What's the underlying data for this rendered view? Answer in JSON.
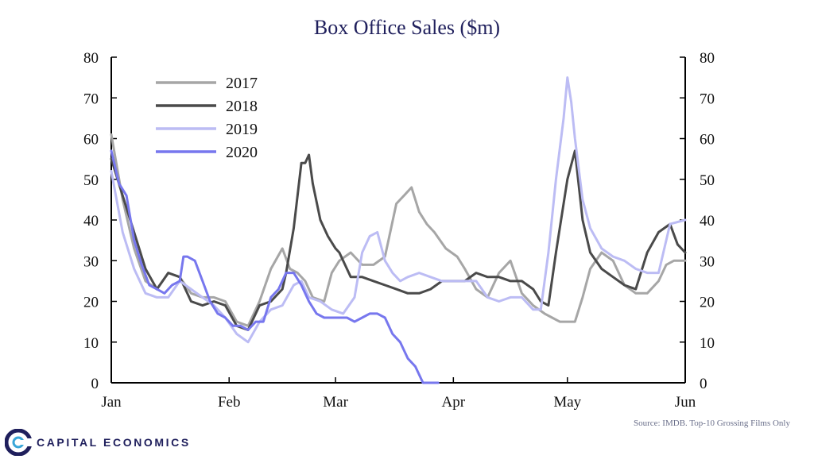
{
  "chart_data": {
    "type": "line",
    "title": "Box Office Sales ($m)",
    "xlabel": "",
    "ylabel": "",
    "ylim": [
      0,
      80
    ],
    "yticks": [
      0,
      10,
      20,
      30,
      40,
      50,
      60,
      70,
      80
    ],
    "xlim": [
      0,
      150
    ],
    "xticks": [
      {
        "label": "Jan",
        "day": 0
      },
      {
        "label": "Feb",
        "day": 31
      },
      {
        "label": "Mar",
        "day": 59
      },
      {
        "label": "Apr",
        "day": 90
      },
      {
        "label": "May",
        "day": 120
      },
      {
        "label": "Jun",
        "day": 151
      }
    ],
    "legend_position": "top-left",
    "grid": false,
    "series": [
      {
        "name": "2017",
        "color": "#a6a6a6",
        "x": [
          0,
          3,
          6,
          9,
          12,
          15,
          18,
          21,
          24,
          27,
          30,
          33,
          36,
          39,
          42,
          45,
          47,
          49,
          51,
          53,
          56,
          58,
          60,
          63,
          66,
          69,
          72,
          75,
          77,
          79,
          81,
          83,
          85,
          88,
          91,
          93,
          96,
          99,
          102,
          105,
          108,
          111,
          114,
          116,
          118,
          120,
          122,
          124,
          126,
          129,
          132,
          135,
          138,
          141,
          144,
          146,
          148,
          151
        ],
        "y": [
          61,
          45,
          33,
          25,
          23,
          27,
          26,
          22,
          21,
          21,
          20,
          15,
          14,
          20,
          28,
          33,
          28,
          27,
          25,
          21,
          20,
          27,
          30,
          32,
          29,
          29,
          31,
          44,
          46,
          48,
          42,
          39,
          37,
          33,
          31,
          28,
          23,
          21,
          27,
          30,
          22,
          19,
          17,
          16,
          15,
          15,
          15,
          21,
          28,
          32,
          30,
          24,
          22,
          22,
          25,
          29,
          30,
          30
        ]
      },
      {
        "name": "2018",
        "color": "#4a4a4a",
        "x": [
          0,
          3,
          6,
          9,
          12,
          15,
          18,
          21,
          24,
          27,
          30,
          33,
          36,
          39,
          42,
          45,
          46,
          48,
          49,
          50,
          51,
          52,
          53,
          55,
          57,
          59,
          60,
          63,
          66,
          69,
          72,
          75,
          78,
          81,
          84,
          87,
          90,
          93,
          96,
          99,
          102,
          105,
          108,
          111,
          113,
          115,
          117,
          120,
          122,
          124,
          126,
          129,
          132,
          135,
          138,
          141,
          144,
          147,
          149,
          151
        ],
        "y": [
          55,
          46,
          37,
          28,
          23,
          27,
          26,
          20,
          19,
          20,
          19,
          14,
          13,
          19,
          20,
          23,
          27,
          38,
          46,
          54,
          54,
          56,
          49,
          40,
          36,
          33,
          32,
          26,
          26,
          25,
          24,
          23,
          22,
          22,
          23,
          25,
          25,
          25,
          27,
          26,
          26,
          25,
          25,
          23,
          20,
          19,
          32,
          50,
          57,
          40,
          32,
          28,
          26,
          24,
          23,
          32,
          37,
          39,
          34,
          32
        ]
      },
      {
        "name": "2019",
        "color": "#bcbcf4",
        "x": [
          0,
          3,
          6,
          9,
          12,
          15,
          18,
          21,
          24,
          27,
          30,
          33,
          36,
          39,
          42,
          45,
          48,
          50,
          52,
          55,
          58,
          61,
          64,
          66,
          68,
          70,
          72,
          74,
          76,
          78,
          81,
          84,
          87,
          90,
          93,
          96,
          99,
          102,
          105,
          108,
          111,
          113,
          115,
          117,
          119,
          120,
          121,
          122,
          124,
          126,
          129,
          132,
          135,
          138,
          141,
          144,
          147,
          151
        ],
        "y": [
          52,
          37,
          28,
          22,
          21,
          21,
          25,
          23,
          21,
          19,
          16,
          12,
          10,
          15,
          18,
          19,
          24,
          25,
          21,
          20,
          18,
          17,
          21,
          32,
          36,
          37,
          30,
          27,
          25,
          26,
          27,
          26,
          25,
          25,
          25,
          25,
          21,
          20,
          21,
          21,
          18,
          18,
          32,
          50,
          65,
          75,
          69,
          60,
          45,
          38,
          33,
          31,
          30,
          28,
          27,
          27,
          39,
          40
        ]
      },
      {
        "name": "2020",
        "color": "#7777ee",
        "x": [
          0,
          2,
          4,
          6,
          8,
          10,
          12,
          14,
          16,
          18,
          19,
          20,
          22,
          24,
          26,
          28,
          30,
          32,
          34,
          36,
          38,
          40,
          42,
          44,
          46,
          48,
          50,
          52,
          54,
          56,
          58,
          60,
          62,
          64,
          66,
          68,
          70,
          72,
          74,
          76,
          78,
          80,
          82,
          84,
          86
        ],
        "y": [
          57,
          49,
          46,
          35,
          29,
          24,
          23,
          22,
          24,
          25,
          31,
          31,
          30,
          25,
          20,
          17,
          16,
          14,
          14,
          13,
          15,
          15,
          21,
          23,
          27,
          27,
          24,
          20,
          17,
          16,
          16,
          16,
          16,
          15,
          16,
          17,
          17,
          16,
          12,
          10,
          6,
          4,
          0,
          0,
          0
        ]
      }
    ]
  },
  "source_note": "Source: IMDB. Top-10 Grossing Films Only",
  "logo": {
    "text": "CAPITAL ECONOMICS",
    "brand_color": "#1f1f5c"
  }
}
